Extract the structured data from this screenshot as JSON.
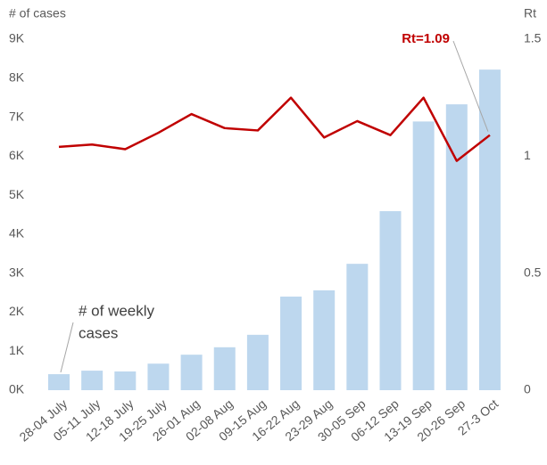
{
  "chart_data": {
    "type": "bar",
    "y_axis_label": "# of cases",
    "y2_axis_label": "Rt",
    "categories": [
      "28-04 July",
      "05-11 July",
      "12-18 July",
      "19-25 July",
      "26-01 Aug",
      "02-08 Aug",
      "09-15 Aug",
      "16-22 Aug",
      "23-29 Aug",
      "30-05 Sep",
      "06-12 Sep",
      "13-19 Sep",
      "20-26 Sep",
      "27-3 Oct"
    ],
    "series": [
      {
        "name": "# of weekly cases",
        "type": "bar",
        "color": "#bdd7ee",
        "values": [
          410,
          500,
          480,
          680,
          910,
          1100,
          1420,
          2400,
          2560,
          3240,
          4590,
          6890,
          7330,
          8220
        ]
      },
      {
        "name": "Rt",
        "type": "line",
        "axis": "y2",
        "color": "#c00000",
        "values": [
          1.04,
          1.05,
          1.03,
          1.1,
          1.18,
          1.12,
          1.11,
          1.25,
          1.08,
          1.15,
          1.09,
          1.25,
          0.98,
          1.09
        ]
      }
    ],
    "ylim": [
      0,
      9000
    ],
    "yticks": [
      {
        "value": 0,
        "label": "0K"
      },
      {
        "value": 1000,
        "label": "1K"
      },
      {
        "value": 2000,
        "label": "2K"
      },
      {
        "value": 3000,
        "label": "3K"
      },
      {
        "value": 4000,
        "label": "4K"
      },
      {
        "value": 5000,
        "label": "5K"
      },
      {
        "value": 6000,
        "label": "6K"
      },
      {
        "value": 7000,
        "label": "7K"
      },
      {
        "value": 8000,
        "label": "8K"
      },
      {
        "value": 9000,
        "label": "9K"
      }
    ],
    "y2lim": [
      0,
      1.5
    ],
    "y2ticks": [
      0,
      0.5,
      1,
      1.5
    ],
    "annotations": [
      {
        "lines": [
          "Rt=1.09"
        ],
        "color": "#c00000"
      },
      {
        "lines": [
          "# of weekly",
          "cases"
        ],
        "color": "#404040"
      }
    ],
    "grid": false
  }
}
